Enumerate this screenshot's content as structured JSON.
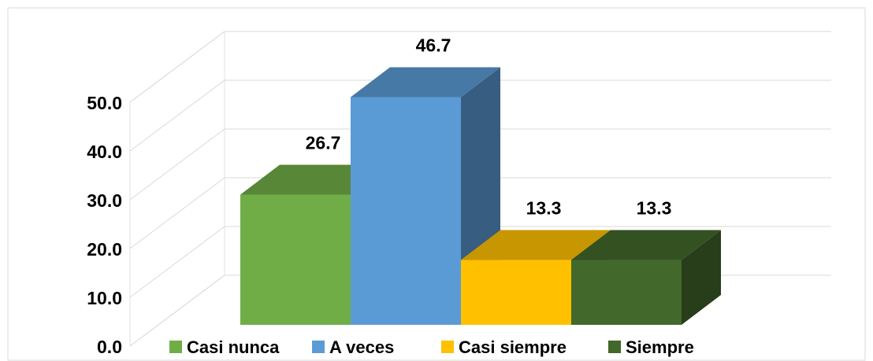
{
  "chart_data": {
    "type": "bar3d",
    "categories": [
      "Casi nunca",
      "A veces",
      "Casi siempre",
      "Siempre"
    ],
    "values": [
      26.7,
      46.7,
      13.3,
      13.3
    ],
    "colors": [
      "#70ad47",
      "#5b9bd5",
      "#ffc000",
      "#43682b"
    ],
    "ylim": [
      0,
      50
    ],
    "yticks": [
      {
        "value": 0,
        "label": "0.0"
      },
      {
        "value": 10,
        "label": "10.0"
      },
      {
        "value": 20,
        "label": "20.0"
      },
      {
        "value": 30,
        "label": "30.0"
      },
      {
        "value": 40,
        "label": "40.0"
      },
      {
        "value": 50,
        "label": "50.0"
      }
    ],
    "grid": true,
    "legend": "bottom"
  }
}
